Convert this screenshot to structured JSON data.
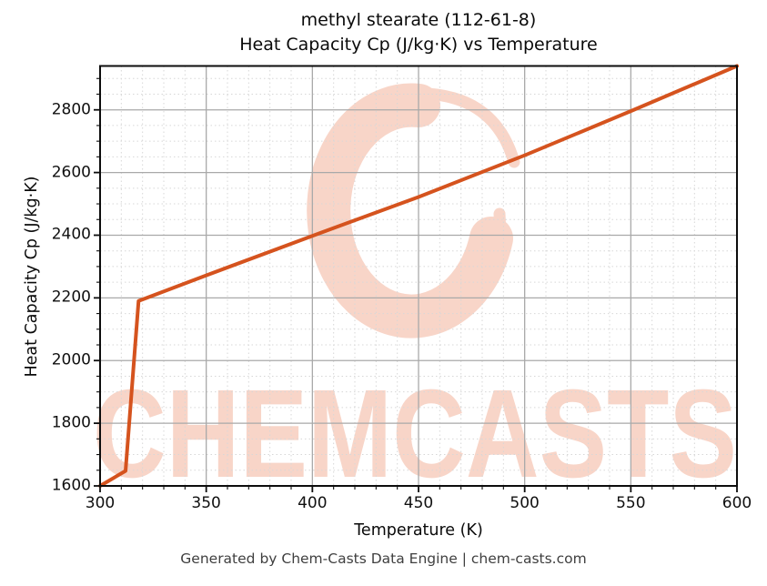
{
  "figure": {
    "title_line1": "methyl stearate (112-61-8)",
    "title_line2": "Heat Capacity Cp (J/kg·K) vs Temperature",
    "footer": "Generated by Chem-Casts Data Engine | chem-casts.com",
    "watermark_text": "CHEMCASTS",
    "colors": {
      "line": "#d5531e",
      "watermark": "#f8d5c8",
      "grid_major": "#a9a9a9",
      "grid_minor": "#d7d7d7",
      "spine": "#0d0d0d",
      "title_text": "#0a0a0a",
      "footer_text": "#3f3f3f"
    }
  },
  "chart_data": {
    "type": "line",
    "title": "methyl stearate (112-61-8)\nHeat Capacity Cp (J/kg·K) vs Temperature",
    "xlabel": "Temperature (K)",
    "ylabel": "Heat Capacity Cp (J/kg·K)",
    "xlim": [
      300,
      600
    ],
    "ylim": [
      1600,
      2940
    ],
    "x_ticks": [
      300,
      350,
      400,
      450,
      500,
      550,
      600
    ],
    "y_ticks": [
      1600,
      1800,
      2000,
      2200,
      2400,
      2600,
      2800
    ],
    "x_minor_step": 10,
    "y_minor_step": 50,
    "grid": "major solid + minor dashed",
    "legend": "none",
    "series": [
      {
        "name": "Heat Capacity Cp (J/kg·K)",
        "points": [
          [
            300,
            1600
          ],
          [
            312,
            1648
          ],
          [
            318.15,
            2190
          ],
          [
            350,
            2272
          ],
          [
            400,
            2398
          ],
          [
            450,
            2522
          ],
          [
            500,
            2655
          ],
          [
            550,
            2796
          ],
          [
            600,
            2940
          ]
        ]
      }
    ]
  }
}
